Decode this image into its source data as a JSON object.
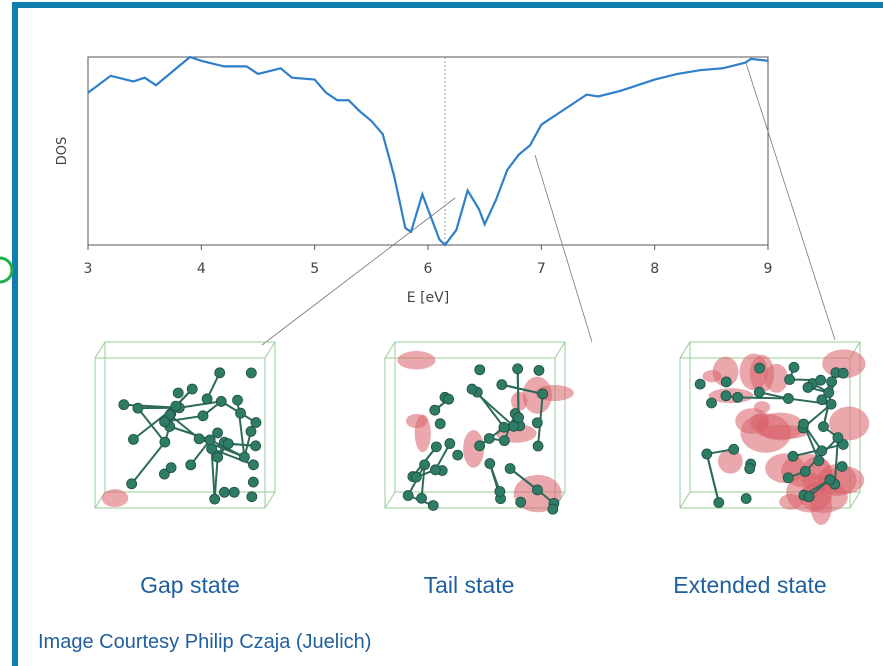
{
  "chart_data": {
    "type": "line",
    "y_label": "DOS",
    "x_label": "E [eV]",
    "x": [
      3.0,
      3.2,
      3.4,
      3.5,
      3.6,
      3.8,
      3.9,
      4.0,
      4.2,
      4.4,
      4.5,
      4.7,
      4.8,
      5.0,
      5.1,
      5.2,
      5.3,
      5.4,
      5.5,
      5.6,
      5.7,
      5.8,
      5.85,
      5.95,
      6.0,
      6.1,
      6.15,
      6.25,
      6.35,
      6.45,
      6.5,
      6.6,
      6.7,
      6.8,
      6.9,
      7.0,
      7.2,
      7.4,
      7.5,
      7.7,
      7.8,
      8.0,
      8.2,
      8.4,
      8.6,
      8.8,
      8.85,
      9.0
    ],
    "series": [
      {
        "color": "#2f7fc9",
        "values": [
          0.81,
          0.9,
          0.87,
          0.89,
          0.85,
          0.95,
          1.0,
          0.98,
          0.95,
          0.95,
          0.91,
          0.94,
          0.89,
          0.88,
          0.81,
          0.77,
          0.77,
          0.71,
          0.66,
          0.59,
          0.37,
          0.09,
          0.07,
          0.27,
          0.19,
          0.03,
          0.0,
          0.08,
          0.29,
          0.19,
          0.11,
          0.24,
          0.4,
          0.48,
          0.53,
          0.64,
          0.72,
          0.8,
          0.79,
          0.82,
          0.84,
          0.88,
          0.91,
          0.93,
          0.94,
          0.97,
          0.99,
          0.98
        ]
      }
    ],
    "xlim": [
      3,
      9
    ],
    "xticks": [
      3,
      4,
      5,
      6,
      7,
      8,
      9
    ],
    "ylim": [
      0,
      1
    ],
    "vline": 6.15
  },
  "captions": [
    "Gap state",
    "Tail state",
    "Extended state"
  ],
  "credit": "Image Courtesy Philip Czaja (Juelich)"
}
